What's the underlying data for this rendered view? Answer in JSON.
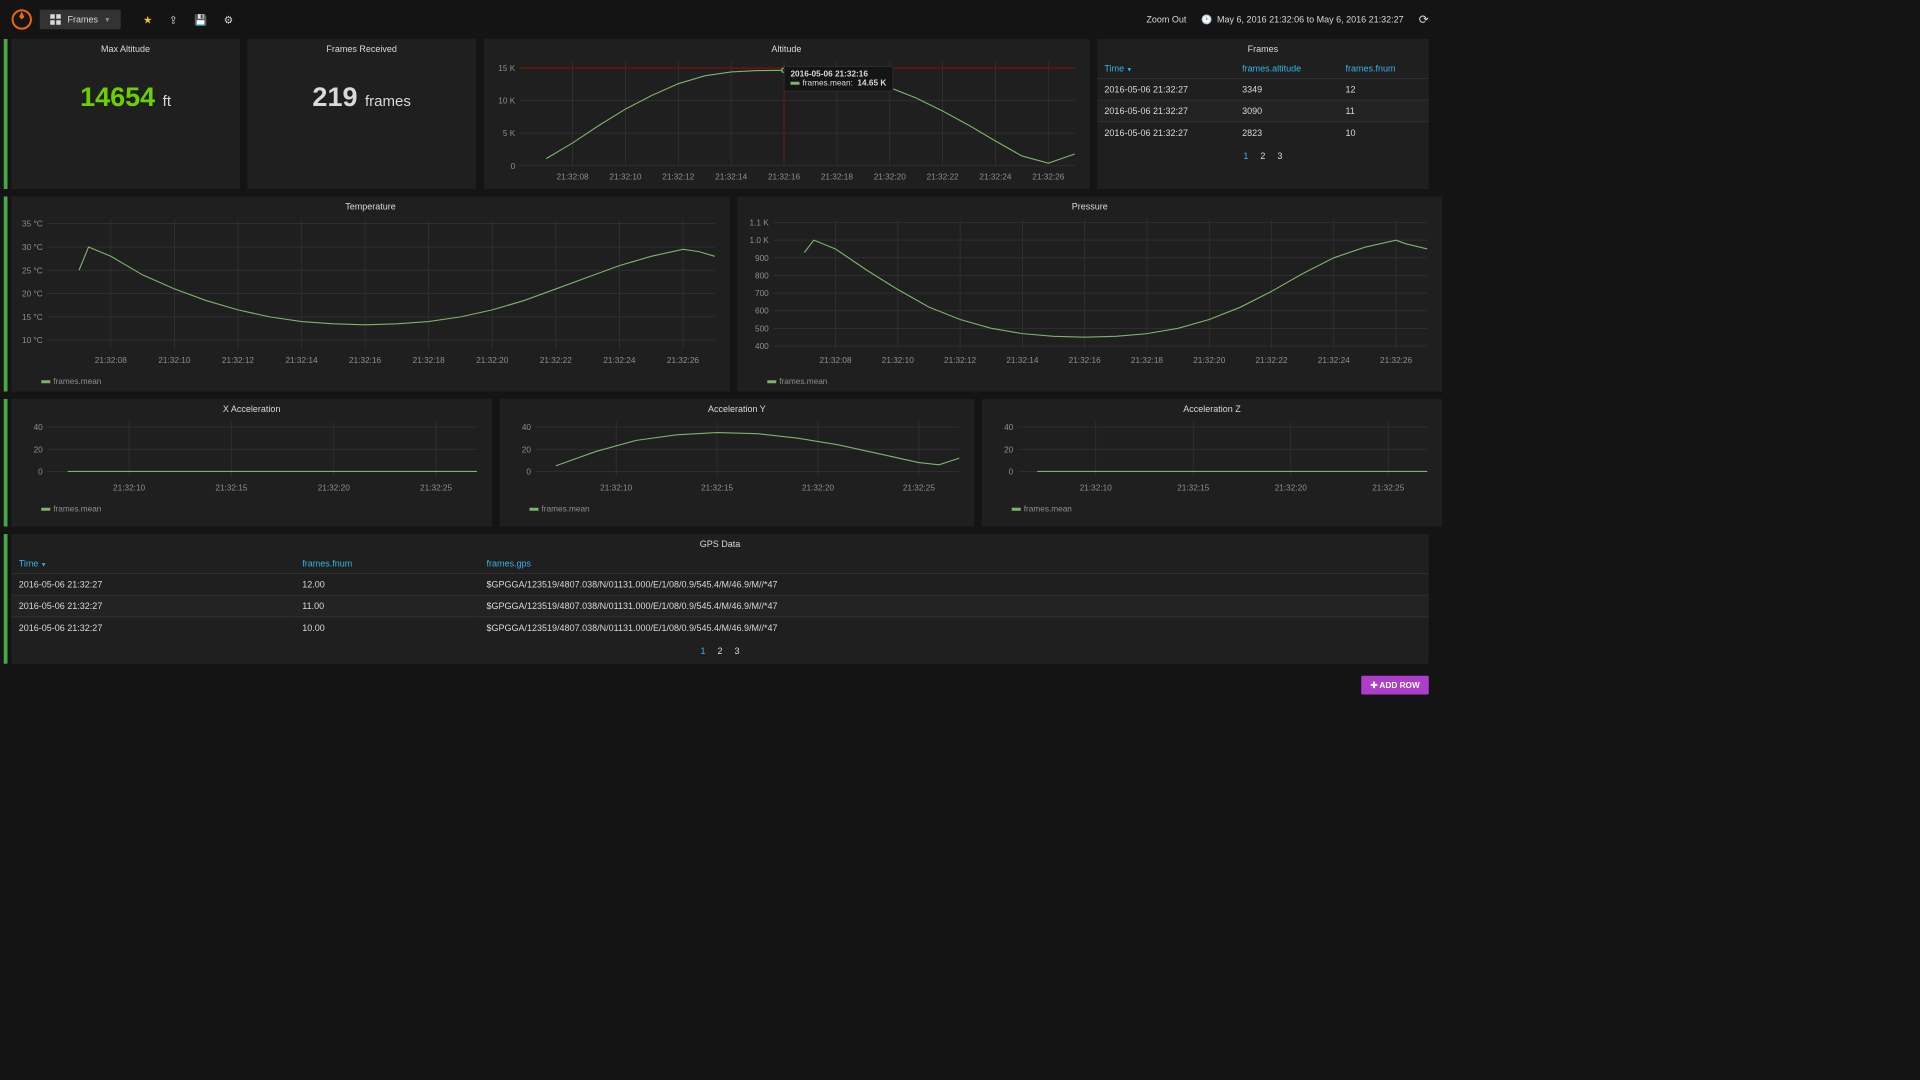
{
  "topbar": {
    "dashboard_name": "Frames",
    "zoom_out": "Zoom Out",
    "timerange": "May 6, 2016 21:32:06 to May 6, 2016 21:32:27"
  },
  "colors": {
    "accent": "#33b5e5",
    "series": "#7eb26d",
    "stat_value": "#6ccf00",
    "panel_bg": "#1f1f1f",
    "page_bg": "#141414",
    "grid": "#333333",
    "threshold": "#890f02",
    "add_row": "#ae3ec9"
  },
  "row1": {
    "max_altitude": {
      "title": "Max Altitude",
      "value": "14654",
      "unit": "ft"
    },
    "frames_received": {
      "title": "Frames Received",
      "value": "219",
      "unit": "frames"
    },
    "altitude_chart": {
      "title": "Altitude",
      "type": "line",
      "x_start": 6,
      "x_end": 27,
      "x_ticks": [
        8,
        10,
        12,
        14,
        16,
        18,
        20,
        22,
        24,
        26
      ],
      "x_tick_labels": [
        "21:32:08",
        "21:32:10",
        "21:32:12",
        "21:32:14",
        "21:32:16",
        "21:32:18",
        "21:32:20",
        "21:32:22",
        "21:32:24",
        "21:32:26"
      ],
      "y_ticks": [
        0,
        5000,
        10000,
        15000
      ],
      "y_tick_labels": [
        "0",
        "5 K",
        "10 K",
        "15 K"
      ],
      "ylim": [
        0,
        16000
      ],
      "threshold": 15000,
      "series": [
        [
          7,
          1100
        ],
        [
          8,
          3500
        ],
        [
          9,
          6200
        ],
        [
          10,
          8700
        ],
        [
          11,
          10800
        ],
        [
          12,
          12600
        ],
        [
          13,
          13800
        ],
        [
          14,
          14400
        ],
        [
          15,
          14600
        ],
        [
          16,
          14654
        ],
        [
          17,
          14500
        ],
        [
          18,
          14000
        ],
        [
          19,
          13200
        ],
        [
          20,
          12000
        ],
        [
          21,
          10400
        ],
        [
          22,
          8400
        ],
        [
          23,
          6200
        ],
        [
          24,
          3800
        ],
        [
          25,
          1500
        ],
        [
          26,
          400
        ],
        [
          27,
          1800
        ]
      ],
      "hover_x": 16,
      "tooltip": {
        "timestamp": "2016-05-06 21:32:16",
        "label": "frames.mean:",
        "value": "14.65 K"
      }
    },
    "frames_table": {
      "title": "Frames",
      "columns": [
        "Time",
        "frames.altitude",
        "frames.fnum"
      ],
      "sort_col": 0,
      "rows": [
        [
          "2016-05-06 21:32:27",
          "3349",
          "12"
        ],
        [
          "2016-05-06 21:32:27",
          "3090",
          "11"
        ],
        [
          "2016-05-06 21:32:27",
          "2823",
          "10"
        ]
      ],
      "pages": [
        "1",
        "2",
        "3"
      ],
      "active_page": 0
    }
  },
  "row2": {
    "temperature": {
      "title": "Temperature",
      "type": "line",
      "legend": "frames.mean",
      "x_start": 6,
      "x_end": 27,
      "x_ticks": [
        8,
        10,
        12,
        14,
        16,
        18,
        20,
        22,
        24,
        26
      ],
      "x_tick_labels": [
        "21:32:08",
        "21:32:10",
        "21:32:12",
        "21:32:14",
        "21:32:16",
        "21:32:18",
        "21:32:20",
        "21:32:22",
        "21:32:24",
        "21:32:26"
      ],
      "y_ticks": [
        10,
        15,
        20,
        25,
        30,
        35
      ],
      "y_tick_labels": [
        "10 °C",
        "15 °C",
        "20 °C",
        "25 °C",
        "30 °C",
        "35 °C"
      ],
      "ylim": [
        8,
        36
      ],
      "series": [
        [
          7,
          25
        ],
        [
          7.3,
          30
        ],
        [
          8,
          28
        ],
        [
          9,
          24
        ],
        [
          10,
          21
        ],
        [
          11,
          18.5
        ],
        [
          12,
          16.5
        ],
        [
          13,
          15
        ],
        [
          14,
          14
        ],
        [
          15,
          13.5
        ],
        [
          16,
          13.3
        ],
        [
          17,
          13.5
        ],
        [
          18,
          14
        ],
        [
          19,
          15
        ],
        [
          20,
          16.5
        ],
        [
          21,
          18.5
        ],
        [
          22,
          21
        ],
        [
          23,
          23.5
        ],
        [
          24,
          26
        ],
        [
          25,
          28
        ],
        [
          26,
          29.5
        ],
        [
          26.5,
          29
        ],
        [
          27,
          28
        ]
      ]
    },
    "pressure": {
      "title": "Pressure",
      "type": "line",
      "legend": "frames.mean",
      "x_start": 6,
      "x_end": 27,
      "x_ticks": [
        8,
        10,
        12,
        14,
        16,
        18,
        20,
        22,
        24,
        26
      ],
      "x_tick_labels": [
        "21:32:08",
        "21:32:10",
        "21:32:12",
        "21:32:14",
        "21:32:16",
        "21:32:18",
        "21:32:20",
        "21:32:22",
        "21:32:24",
        "21:32:26"
      ],
      "y_ticks": [
        400,
        500,
        600,
        700,
        800,
        900,
        1000,
        1100
      ],
      "y_tick_labels": [
        "400",
        "500",
        "600",
        "700",
        "800",
        "900",
        "1.0 K",
        "1.1 K"
      ],
      "ylim": [
        380,
        1120
      ],
      "series": [
        [
          7,
          930
        ],
        [
          7.3,
          1000
        ],
        [
          8,
          950
        ],
        [
          9,
          830
        ],
        [
          10,
          720
        ],
        [
          11,
          620
        ],
        [
          12,
          550
        ],
        [
          13,
          500
        ],
        [
          14,
          470
        ],
        [
          15,
          455
        ],
        [
          16,
          450
        ],
        [
          17,
          455
        ],
        [
          18,
          470
        ],
        [
          19,
          500
        ],
        [
          20,
          550
        ],
        [
          21,
          620
        ],
        [
          22,
          710
        ],
        [
          23,
          810
        ],
        [
          24,
          900
        ],
        [
          25,
          960
        ],
        [
          26,
          1000
        ],
        [
          26.3,
          980
        ],
        [
          27,
          950
        ]
      ]
    }
  },
  "row3": {
    "accel_x": {
      "title": "X Acceleration",
      "type": "line",
      "legend": "frames.mean",
      "x_start": 6,
      "x_end": 27,
      "x_ticks": [
        10,
        15,
        20,
        25
      ],
      "x_tick_labels": [
        "21:32:10",
        "21:32:15",
        "21:32:20",
        "21:32:25"
      ],
      "y_ticks": [
        0,
        20,
        40
      ],
      "y_tick_labels": [
        "0",
        "20",
        "40"
      ],
      "ylim": [
        -5,
        45
      ],
      "series": [
        [
          7,
          0
        ],
        [
          10,
          0
        ],
        [
          15,
          0
        ],
        [
          20,
          0
        ],
        [
          25,
          0
        ],
        [
          27,
          0
        ]
      ]
    },
    "accel_y": {
      "title": "Acceleration Y",
      "type": "line",
      "legend": "frames.mean",
      "x_start": 6,
      "x_end": 27,
      "x_ticks": [
        10,
        15,
        20,
        25
      ],
      "x_tick_labels": [
        "21:32:10",
        "21:32:15",
        "21:32:20",
        "21:32:25"
      ],
      "y_ticks": [
        0,
        20,
        40
      ],
      "y_tick_labels": [
        "0",
        "20",
        "40"
      ],
      "ylim": [
        -5,
        45
      ],
      "series": [
        [
          7,
          5
        ],
        [
          9,
          18
        ],
        [
          11,
          28
        ],
        [
          13,
          33
        ],
        [
          15,
          35
        ],
        [
          17,
          34
        ],
        [
          19,
          30
        ],
        [
          21,
          24
        ],
        [
          23,
          16
        ],
        [
          25,
          8
        ],
        [
          26,
          6
        ],
        [
          27,
          12
        ]
      ]
    },
    "accel_z": {
      "title": "Acceleration Z",
      "type": "line",
      "legend": "frames.mean",
      "x_start": 6,
      "x_end": 27,
      "x_ticks": [
        10,
        15,
        20,
        25
      ],
      "x_tick_labels": [
        "21:32:10",
        "21:32:15",
        "21:32:20",
        "21:32:25"
      ],
      "y_ticks": [
        0,
        20,
        40
      ],
      "y_tick_labels": [
        "0",
        "20",
        "40"
      ],
      "ylim": [
        -5,
        45
      ],
      "series": [
        [
          7,
          0
        ],
        [
          10,
          0
        ],
        [
          15,
          0
        ],
        [
          20,
          0
        ],
        [
          25,
          0
        ],
        [
          27,
          0
        ]
      ]
    }
  },
  "row4": {
    "gps": {
      "title": "GPS Data",
      "columns": [
        "Time",
        "frames.fnum",
        "frames.gps"
      ],
      "sort_col": 0,
      "rows": [
        [
          "2016-05-06 21:32:27",
          "12.00",
          "$GPGGA/123519/4807.038/N/01131.000/E/1/08/0.9/545.4/M/46.9/M//*47"
        ],
        [
          "2016-05-06 21:32:27",
          "11.00",
          "$GPGGA/123519/4807.038/N/01131.000/E/1/08/0.9/545.4/M/46.9/M//*47"
        ],
        [
          "2016-05-06 21:32:27",
          "10.00",
          "$GPGGA/123519/4807.038/N/01131.000/E/1/08/0.9/545.4/M/46.9/M//*47"
        ]
      ],
      "pages": [
        "1",
        "2",
        "3"
      ],
      "active_page": 0
    }
  },
  "add_row_label": "ADD ROW"
}
